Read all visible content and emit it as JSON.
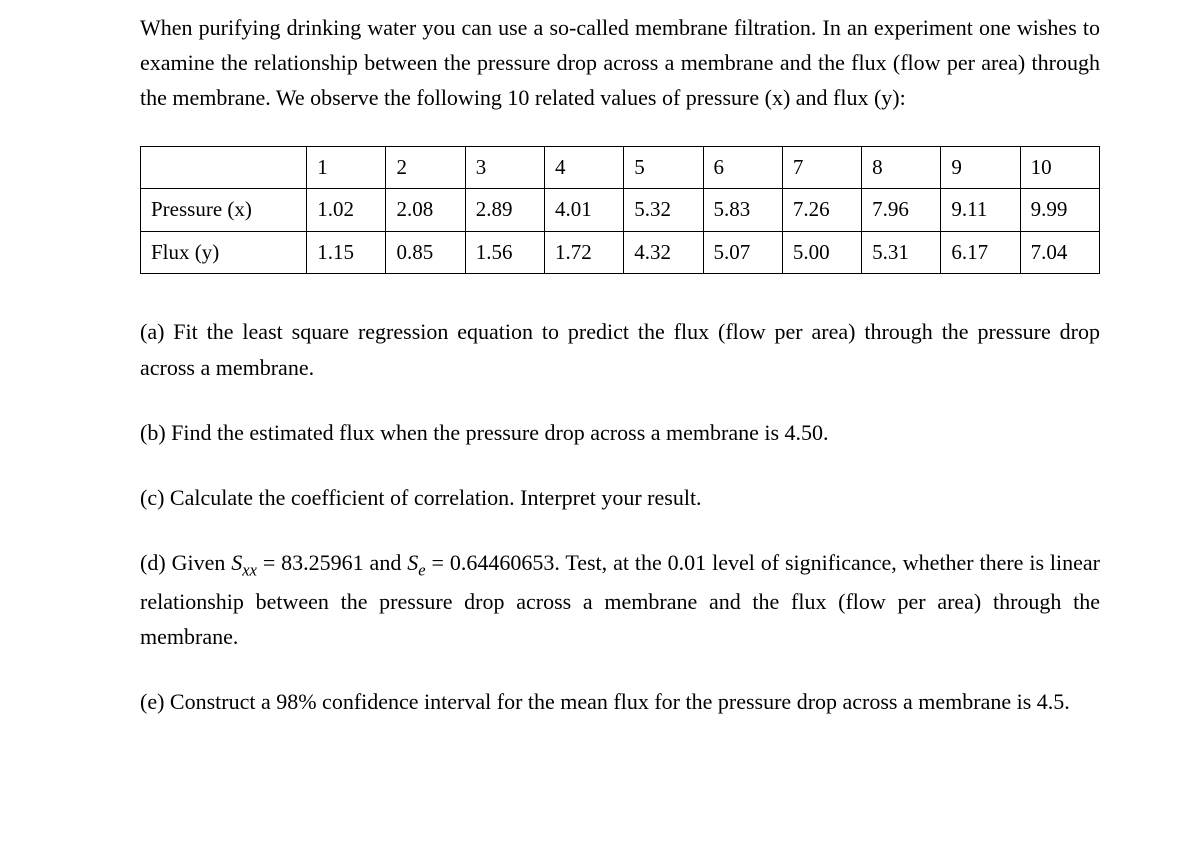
{
  "intro": "When purifying drinking water you can use a so-called membrane filtration. In an experiment one wishes to examine the relationship between the pressure drop across a membrane and the flux (flow per area) through the membrane. We observe the following 10 related values of pressure (x) and flux (y):",
  "table": {
    "header_row": [
      "",
      "1",
      "2",
      "3",
      "4",
      "5",
      "6",
      "7",
      "8",
      "9",
      "10"
    ],
    "pressure_label": "Pressure (x)",
    "pressure_values": [
      "1.02",
      "2.08",
      "2.89",
      "4.01",
      "5.32",
      "5.83",
      "7.26",
      "7.96",
      "9.11",
      "9.99"
    ],
    "flux_label": "Flux (y)",
    "flux_values": [
      "1.15",
      "0.85",
      "1.56",
      "1.72",
      "4.32",
      "5.07",
      "5.00",
      "5.31",
      "6.17",
      "7.04"
    ]
  },
  "questions": {
    "a": "(a) Fit the least square regression equation to predict the flux (flow per area) through the pressure drop across a membrane.",
    "b": "(b) Find the estimated flux when the pressure drop across a membrane is 4.50.",
    "c": "(c) Calculate the coefficient of correlation. Interpret your result.",
    "d_prefix": "(d) Given  ",
    "d_sxx": "S",
    "d_sxx_sub": "xx",
    "d_mid1": " = 83.25961  and  ",
    "d_se": "S",
    "d_se_sub": "e",
    "d_mid2": " = 0.64460653. Test, at the 0.01 level of significance, whether there is linear relationship between the pressure drop across a membrane and the flux (flow per area) through the membrane.",
    "e": "(e) Construct a 98% confidence interval for the mean flux for the pressure drop across a membrane is 4.5."
  }
}
